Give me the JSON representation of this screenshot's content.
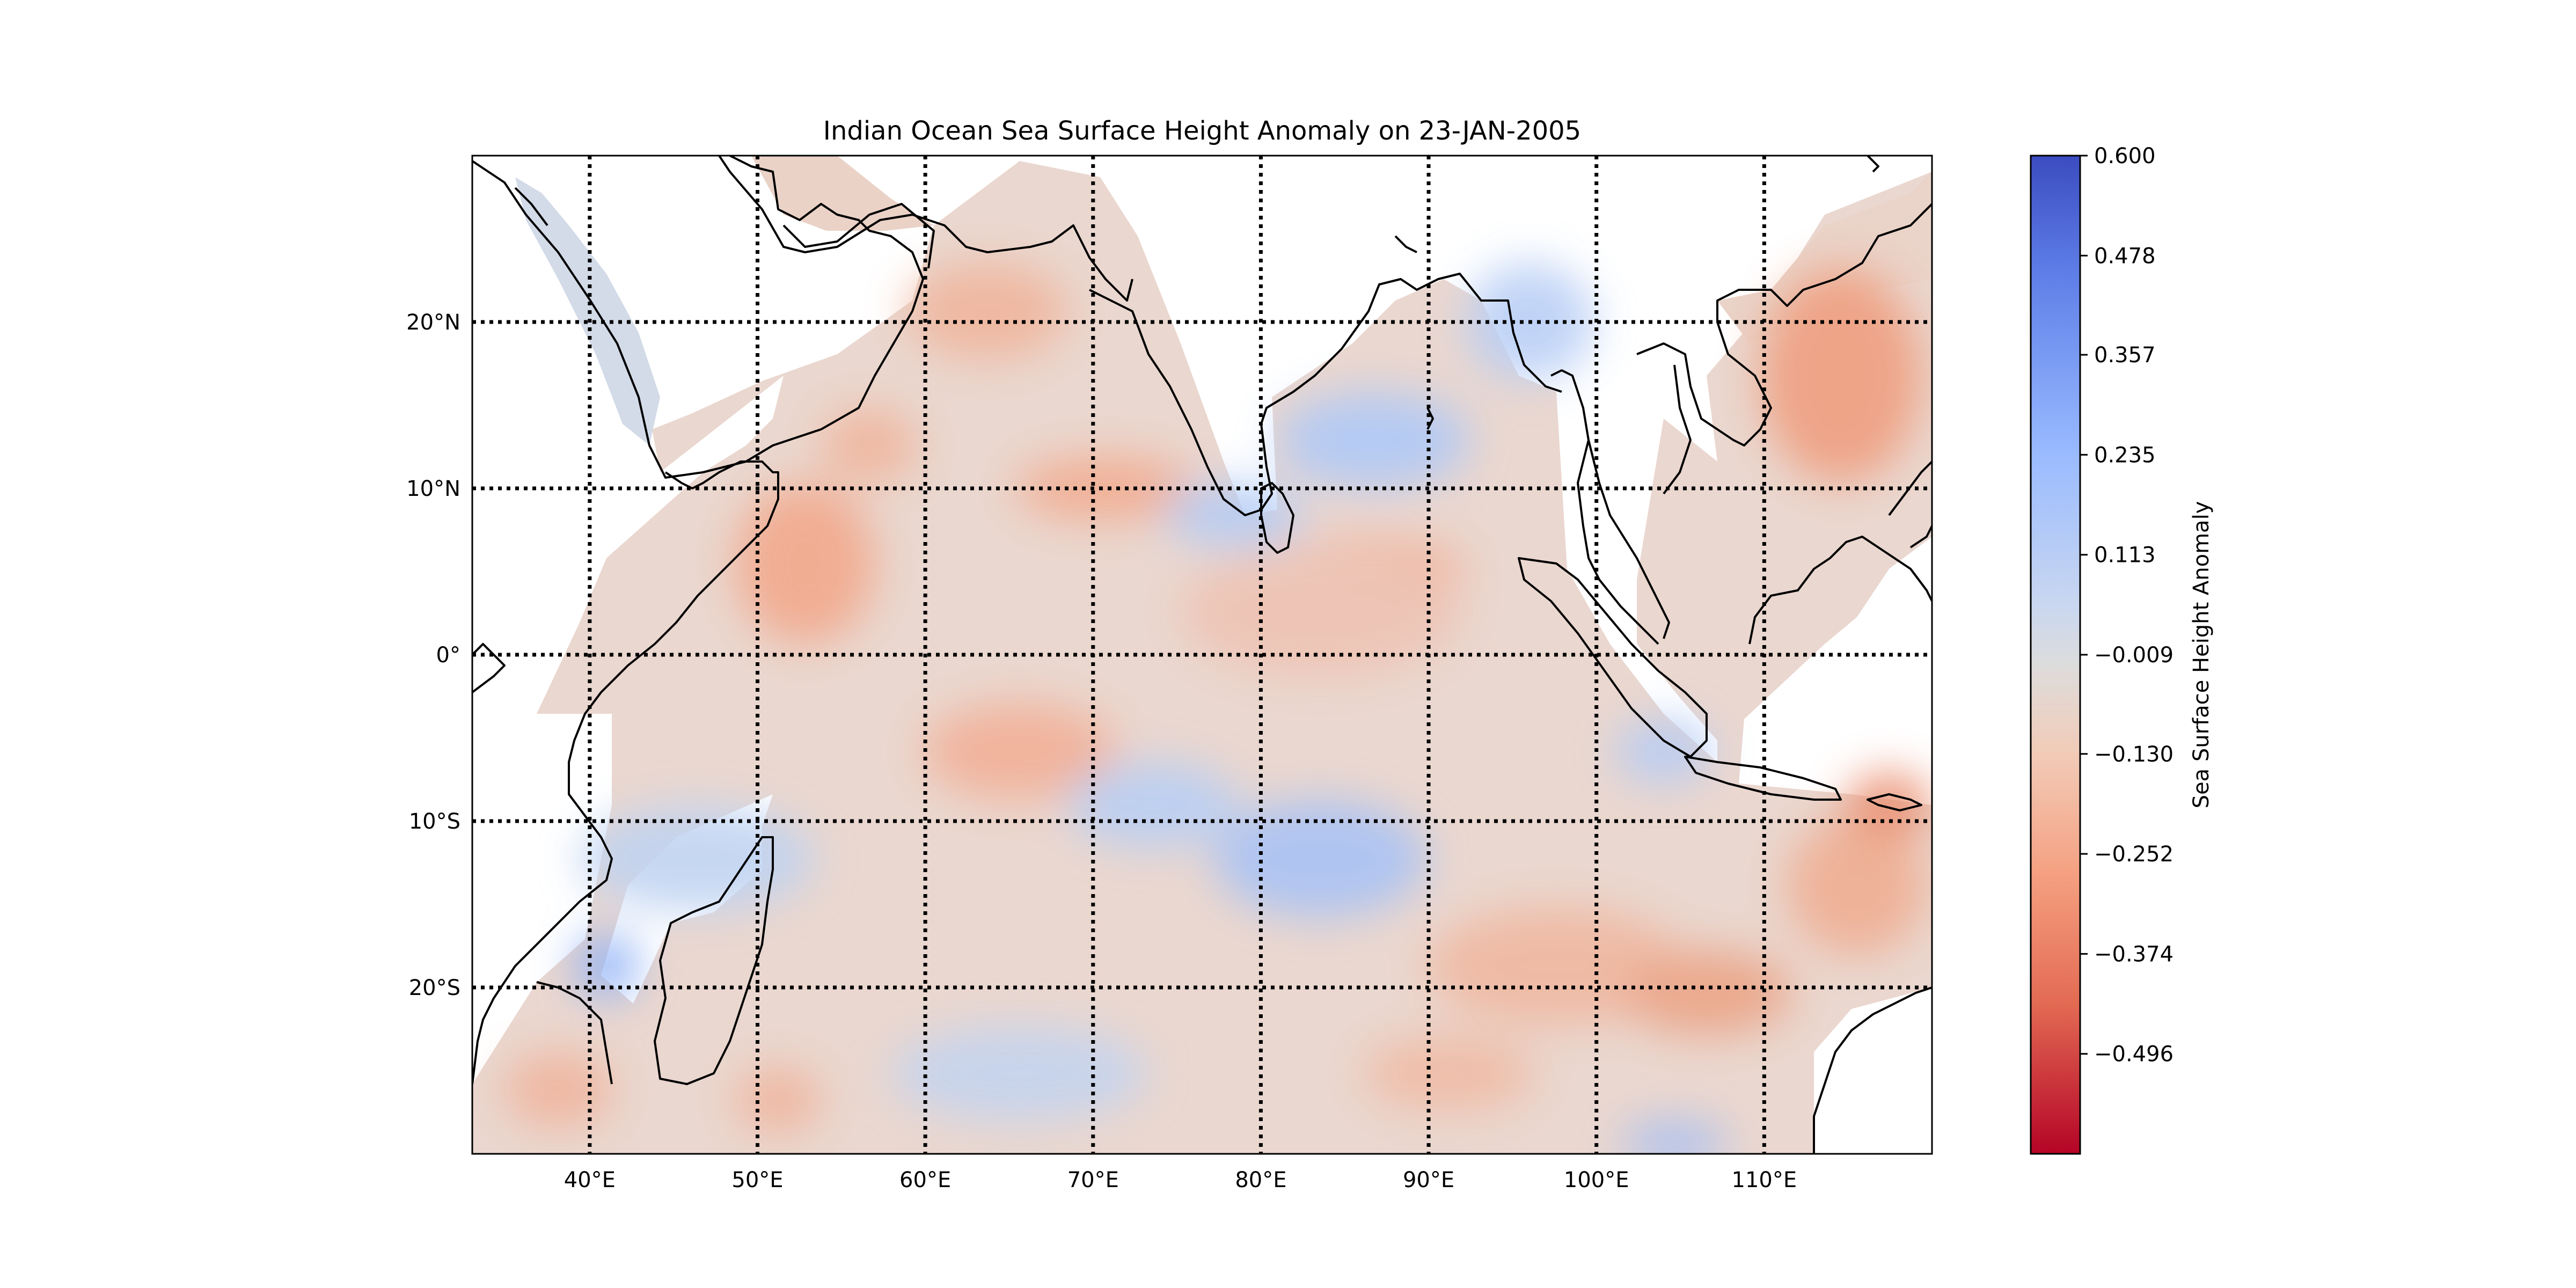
{
  "title": "Indian Ocean Sea Surface Height Anomaly on 23-JAN-2005",
  "map": {
    "lon_range": [
      33,
      120
    ],
    "lat_range": [
      -30,
      30
    ],
    "lon_ticks": [
      {
        "value": 40,
        "label": "40°E"
      },
      {
        "value": 50,
        "label": "50°E"
      },
      {
        "value": 60,
        "label": "60°E"
      },
      {
        "value": 70,
        "label": "70°E"
      },
      {
        "value": 80,
        "label": "80°E"
      },
      {
        "value": 90,
        "label": "90°E"
      },
      {
        "value": 100,
        "label": "100°E"
      },
      {
        "value": 110,
        "label": "110°E"
      }
    ],
    "lat_ticks": [
      {
        "value": 20,
        "label": "20°N"
      },
      {
        "value": 10,
        "label": "10°N"
      },
      {
        "value": 0,
        "label": "0°"
      },
      {
        "value": -10,
        "label": "10°S"
      },
      {
        "value": -20,
        "label": "20°S"
      }
    ],
    "gridlines": "dotted",
    "land_color": "#ffffff",
    "coastline_color": "#000000"
  },
  "colorbar": {
    "label": "Sea Surface Height Anomaly",
    "range": [
      -0.618,
      0.6
    ],
    "colormap": "coolwarm_r",
    "ticks": [
      0.6,
      0.478,
      0.357,
      0.235,
      0.113,
      -0.009,
      -0.13,
      -0.252,
      -0.374,
      -0.496
    ],
    "tick_labels": [
      "0.600",
      "0.478",
      "0.357",
      "0.235",
      "0.113",
      "−0.009",
      "−0.130",
      "−0.252",
      "−0.374",
      "−0.496"
    ],
    "colors": {
      "max": "#3b4cc0",
      "mid": "#dddddd",
      "min": "#b40426"
    }
  }
}
